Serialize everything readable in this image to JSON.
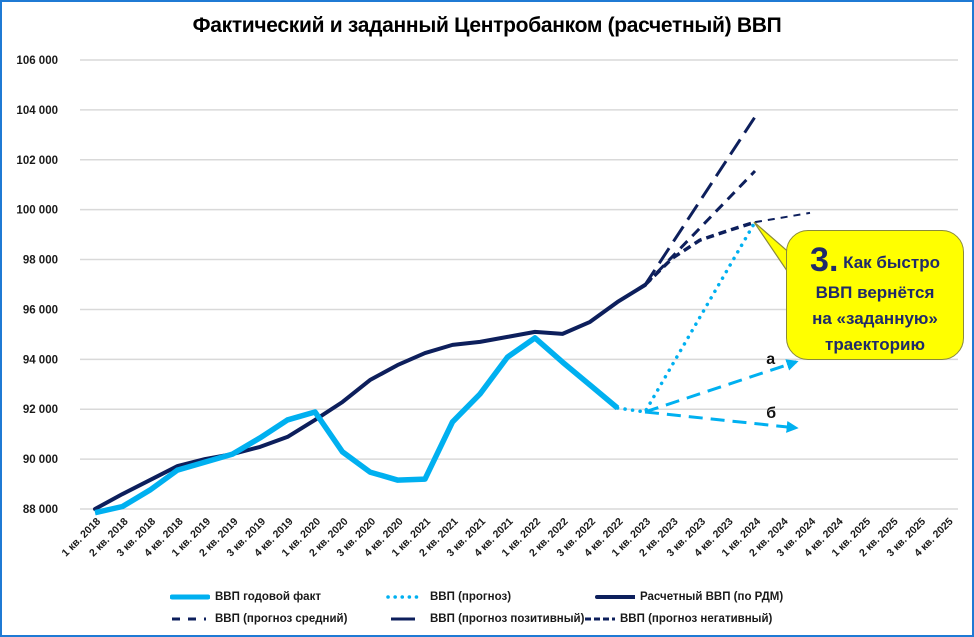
{
  "title": "Фактический и заданный Центробанком (расчетный) ВВП",
  "colors": {
    "frame": "#1f7ad4",
    "actual": "#00b0f0",
    "rdm": "#0d1f5c",
    "grid": "#d9d9d9",
    "callout_bg": "#ffff00",
    "callout_text": "#1f2a6a"
  },
  "callout": {
    "number": "3.",
    "line1": "Как быстро",
    "line2": "ВВП вернётся",
    "line3": "на «заданную»",
    "line4": "траекторию"
  },
  "arrow_labels": {
    "a": "а",
    "b": "б"
  },
  "legend": [
    {
      "label": "ВВП годовой факт",
      "style": "solid-thick-light"
    },
    {
      "label": "ВВП (прогноз)",
      "style": "dotted-light"
    },
    {
      "label": "Расчетный ВВП (по РДМ)",
      "style": "solid-dark"
    },
    {
      "label": "ВВП (прогноз средний)",
      "style": "dash-medium-dark"
    },
    {
      "label": "ВВП (прогноз позитивный)",
      "style": "dash-long-dark"
    },
    {
      "label": "ВВП (прогноз негативный)",
      "style": "dash-short-dark"
    }
  ],
  "chart_data": {
    "type": "line",
    "title": "Фактический и заданный Центробанком (расчетный) ВВП",
    "xlabel": "",
    "ylabel": "",
    "ylim": [
      88000,
      106000
    ],
    "yticks": [
      88000,
      90000,
      92000,
      94000,
      96000,
      98000,
      100000,
      102000,
      104000,
      106000
    ],
    "ytick_labels": [
      "88 000",
      "90 000",
      "92 000",
      "94 000",
      "96 000",
      "98 000",
      "100 000",
      "102 000",
      "104 000",
      "106 000"
    ],
    "grid": true,
    "legend_position": "bottom",
    "categories": [
      "1 кв. 2018",
      "2 кв. 2018",
      "3 кв. 2018",
      "4 кв. 2018",
      "1 кв. 2019",
      "2 кв. 2019",
      "3 кв. 2019",
      "4 кв. 2019",
      "1 кв. 2020",
      "2 кв. 2020",
      "3 кв. 2020",
      "4 кв. 2020",
      "1 кв. 2021",
      "2 кв. 2021",
      "3 кв. 2021",
      "4 кв. 2021",
      "1 кв. 2022",
      "2 кв. 2022",
      "3 кв. 2022",
      "4 кв. 2022",
      "1 кв. 2023",
      "2 кв. 2023",
      "3 кв. 2023",
      "4 кв. 2023",
      "1 кв. 2024",
      "2 кв. 2024",
      "3 кв. 2024",
      "4 кв. 2024",
      "1 кв. 2025",
      "2 кв. 2025",
      "3 кв. 2025",
      "4 кв. 2025"
    ],
    "series": [
      {
        "name": "ВВП годовой факт",
        "start_index": 0,
        "values": [
          87850,
          88100,
          88760,
          89560,
          89880,
          90200,
          90850,
          91570,
          91890,
          90290,
          89480,
          89160,
          89200,
          91490,
          92610,
          94090,
          94860,
          93890,
          92970,
          92050
        ]
      },
      {
        "name": "ВВП (прогноз)",
        "start_index": 19,
        "values": [
          92050,
          91890,
          null,
          null,
          null,
          99500
        ]
      },
      {
        "name": "Расчетный ВВП (по РДМ)",
        "start_index": 0,
        "values": [
          88000,
          88600,
          89160,
          89720,
          90000,
          90200,
          90490,
          90890,
          91570,
          92290,
          93170,
          93770,
          94250,
          94580,
          94700,
          94900,
          95100,
          95020,
          95500,
          96300,
          96980
        ]
      },
      {
        "name": "ВВП (прогноз средний)",
        "start_index": 20,
        "values": [
          96980,
          null,
          null,
          null,
          101550
        ]
      },
      {
        "name": "ВВП (прогноз позитивный)",
        "start_index": 20,
        "values": [
          96980,
          null,
          null,
          null,
          103720
        ]
      },
      {
        "name": "ВВП (прогноз негативный)",
        "start_index": 20,
        "values": [
          96980,
          98060,
          98780,
          99150,
          99500,
          null,
          99870
        ]
      }
    ],
    "annotations": [
      {
        "label": "а",
        "from_index": 20,
        "from_value": 91890,
        "to_index": 25.5,
        "to_value": 93900
      },
      {
        "label": "б",
        "from_index": 20,
        "from_value": 91890,
        "to_index": 25.5,
        "to_value": 91250
      },
      {
        "label": "3. Как быстро ВВП вернётся на «заданную» траекторию",
        "points_to_index": 24,
        "points_to_value": 99500
      }
    ]
  }
}
